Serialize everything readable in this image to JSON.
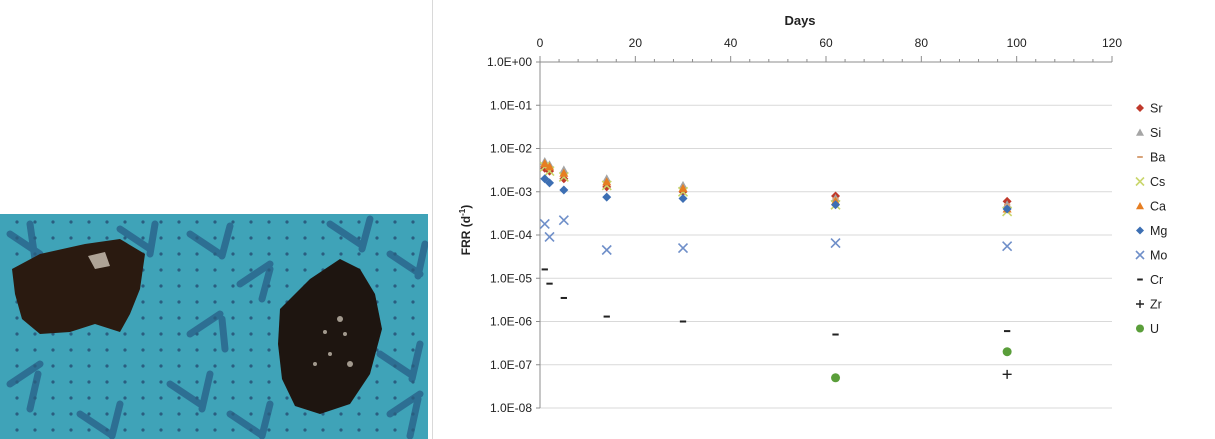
{
  "photo": {
    "description_hidden": ""
  },
  "colors": {
    "Sr": "#c0392b",
    "Si": "#a5a5a5",
    "Ba": "#d8a37a",
    "Cs": "#c9d66b",
    "Ca": "#e67e22",
    "Mg": "#3d6fb3",
    "Mo": "#6f8fc9",
    "Cr": "#222222",
    "Zr": "#222222",
    "U": "#5a9e3a",
    "grid": "#d9d9d9",
    "axis": "#8c8c8c"
  },
  "chart_data": {
    "type": "scatter",
    "xlabel": "Days",
    "ylabel": "FRR (d⁻¹)",
    "ylabel_main": "FRR (d",
    "ylabel_sup": "-1",
    "ylabel_close": ")",
    "xlim": [
      0,
      120
    ],
    "ylim": [
      1e-08,
      1
    ],
    "y_scale": "log",
    "x_ticks": [
      0,
      20,
      40,
      60,
      80,
      100,
      120
    ],
    "x_tick_labels": [
      "0",
      "20",
      "40",
      "60",
      "80",
      "100",
      "120"
    ],
    "y_ticks": [
      1,
      0.1,
      0.01,
      0.001,
      0.0001,
      1e-05,
      1e-06,
      1e-07,
      1e-08
    ],
    "y_tick_labels": [
      "1.0E+00",
      "1.0E-01",
      "1.0E-02",
      "1.0E-03",
      "1.0E-04",
      "1.0E-05",
      "1.0E-06",
      "1.0E-07",
      "1.0E-08"
    ],
    "grid": "horizontal",
    "legend_position": "right",
    "series": [
      {
        "name": "Sr",
        "marker": "diamond",
        "x": [
          1,
          2,
          5,
          14,
          30,
          62,
          98
        ],
        "y": [
          0.0035,
          0.003,
          0.002,
          0.0013,
          0.001,
          0.0008,
          0.0006
        ]
      },
      {
        "name": "Si",
        "marker": "triangle",
        "x": [
          1,
          2,
          5,
          14,
          30,
          62,
          98
        ],
        "y": [
          0.005,
          0.0042,
          0.0032,
          0.002,
          0.0014,
          0.0007,
          0.0005
        ]
      },
      {
        "name": "Ba",
        "marker": "dash",
        "x": [
          1,
          2,
          5,
          14,
          30,
          62,
          98
        ],
        "y": [
          0.0042,
          0.0035,
          0.0025,
          0.0016,
          0.0011,
          0.0007,
          0.0005
        ]
      },
      {
        "name": "Cs",
        "marker": "x",
        "x": [
          1,
          2,
          5,
          14,
          30,
          62,
          98
        ],
        "y": [
          0.0038,
          0.003,
          0.0022,
          0.0014,
          0.001,
          0.0005,
          0.00035
        ]
      },
      {
        "name": "Ca",
        "marker": "triangle",
        "x": [
          1,
          2,
          5,
          14,
          30,
          62,
          98
        ],
        "y": [
          0.0045,
          0.0038,
          0.0027,
          0.0017,
          0.0012,
          0.0006,
          0.0004
        ]
      },
      {
        "name": "Mg",
        "marker": "diamond",
        "x": [
          1,
          2,
          5,
          14,
          30,
          62,
          98
        ],
        "y": [
          0.002,
          0.0016,
          0.0011,
          0.00075,
          0.0007,
          0.0005,
          0.0004
        ]
      },
      {
        "name": "Mo",
        "marker": "x",
        "x": [
          1,
          2,
          5,
          14,
          30,
          62,
          98
        ],
        "y": [
          0.00018,
          9e-05,
          0.00022,
          4.5e-05,
          5e-05,
          6.5e-05,
          5.5e-05
        ]
      },
      {
        "name": "Cr",
        "marker": "dash",
        "x": [
          1,
          2,
          5,
          14,
          30,
          62,
          98
        ],
        "y": [
          1.6e-05,
          7.5e-06,
          3.5e-06,
          1.3e-06,
          1e-06,
          5e-07,
          6e-07
        ]
      },
      {
        "name": "Zr",
        "marker": "plus",
        "x": [
          98
        ],
        "y": [
          6e-08
        ]
      },
      {
        "name": "U",
        "marker": "circle",
        "x": [
          62,
          98
        ],
        "y": [
          5e-08,
          2e-07
        ]
      }
    ]
  }
}
